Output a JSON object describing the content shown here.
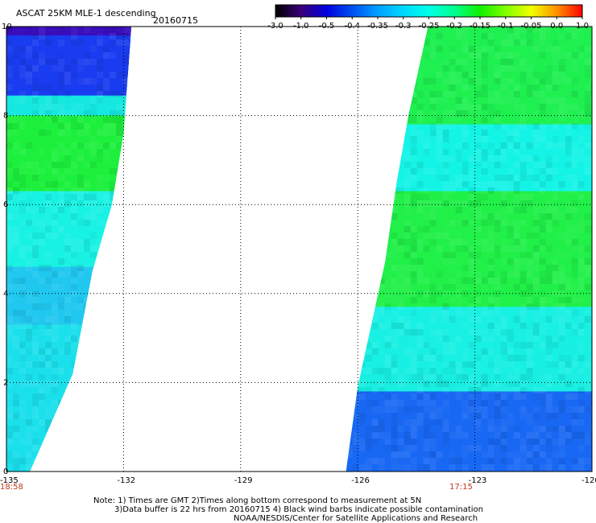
{
  "chart_data": {
    "type": "heatmap",
    "title": "ASCAT 25KM MLE-1 descending",
    "date": "20160715",
    "x_ticks": [
      "-135",
      "-132",
      "-129",
      "-126",
      "-123",
      "-120"
    ],
    "x_tick_values": [
      -135,
      -132,
      -129,
      -126,
      -123,
      -120
    ],
    "y_ticks": [
      "0",
      "2",
      "4",
      "6",
      "8",
      "10"
    ],
    "y_tick_values": [
      0,
      2,
      4,
      6,
      8,
      10
    ],
    "xlim": [
      -135,
      -120
    ],
    "ylim": [
      0,
      10
    ],
    "grid": true,
    "colorbar": {
      "labels": [
        "-3.0",
        "-1.0",
        "-0.5",
        "-0.4",
        "-0.35",
        "-0.3",
        "-0.25",
        "-0.2",
        "-0.15",
        "-0.1",
        "-0.05",
        "0.0",
        "1.0"
      ],
      "colors": [
        "#000000",
        "#3a0078",
        "#0000e0",
        "#0050f0",
        "#00a0ff",
        "#00d8ff",
        "#00ffe8",
        "#00ff90",
        "#10f000",
        "#80ff00",
        "#f0ff00",
        "#ff9000",
        "#ff0000"
      ]
    },
    "swaths": [
      {
        "name": "west",
        "edge": [
          [
            10.0,
            -131.8
          ],
          [
            7.6,
            -132.0
          ],
          [
            6.0,
            -132.3
          ],
          [
            4.5,
            -132.8
          ],
          [
            2.2,
            -133.3
          ],
          [
            0.0,
            -134.4
          ]
        ],
        "regions": [
          {
            "ymin": 8.9,
            "ymax": 10.0,
            "value": -1.0,
            "color": "#3a0dbd"
          },
          {
            "ymin": 8.3,
            "ymax": 9.8,
            "value": -0.45,
            "color": "#1a3cf0"
          },
          {
            "ymin": 7.95,
            "ymax": 8.45,
            "value": -0.33,
            "color": "#15e8e0"
          },
          {
            "ymin": 6.3,
            "ymax": 8.0,
            "value": -0.2,
            "color": "#1cf03c"
          },
          {
            "ymin": 4.5,
            "ymax": 6.3,
            "value": -0.27,
            "color": "#18f2e4"
          },
          {
            "ymin": 3.3,
            "ymax": 4.6,
            "value": -0.32,
            "color": "#20c8f0"
          },
          {
            "ymin": 0.0,
            "ymax": 3.3,
            "value": -0.29,
            "color": "#1ae0ec"
          }
        ]
      },
      {
        "name": "east",
        "edge": [
          [
            10.0,
            -124.2
          ],
          [
            8.0,
            -124.7
          ],
          [
            6.5,
            -125.0
          ],
          [
            4.7,
            -125.3
          ],
          [
            3.5,
            -125.6
          ],
          [
            1.9,
            -126.0
          ],
          [
            0.0,
            -126.3
          ]
        ],
        "regions": [
          {
            "ymin": 7.8,
            "ymax": 10.0,
            "value": -0.18,
            "color": "#1ef050"
          },
          {
            "ymin": 6.3,
            "ymax": 7.8,
            "value": -0.27,
            "color": "#14f4e6"
          },
          {
            "ymin": 3.7,
            "ymax": 6.3,
            "value": -0.18,
            "color": "#20f048"
          },
          {
            "ymin": 2.2,
            "ymax": 3.7,
            "value": -0.27,
            "color": "#18f0e4"
          },
          {
            "ymin": 0.0,
            "ymax": 1.8,
            "value": -0.4,
            "color": "#1868f4"
          }
        ]
      }
    ],
    "time_labels": [
      {
        "text": "18:58",
        "x": -135
      },
      {
        "text": "17:15",
        "x": -123
      }
    ],
    "notes": [
      "Note: 1) Times are GMT 2)Times along bottom correspond to measurement at 5N",
      "3)Data buffer is 22 hrs from 20160715 4) Black wind barbs indicate possible contamination",
      "NOAA/NESDIS/Center for Satellite Applications and Research"
    ]
  }
}
